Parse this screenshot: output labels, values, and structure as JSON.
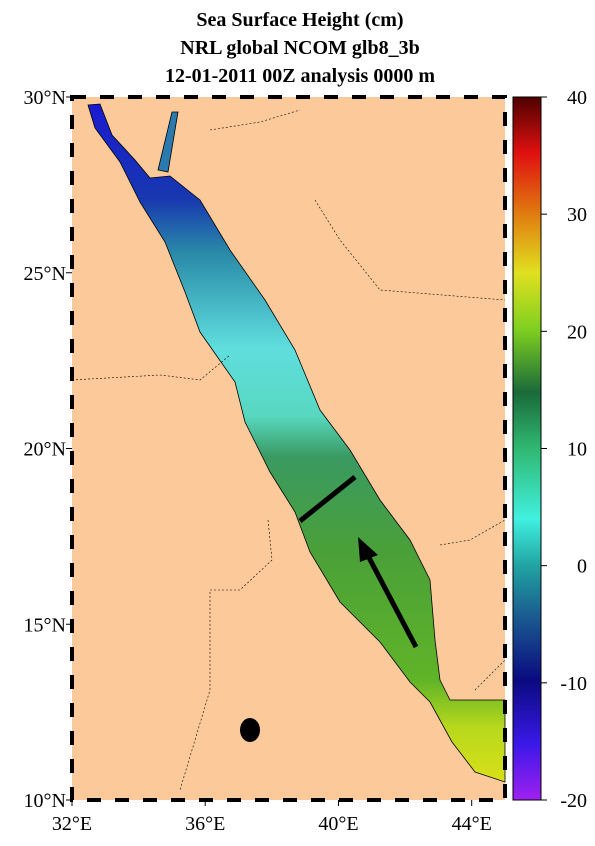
{
  "header": {
    "title_lines": [
      "Sea Surface Height (cm)",
      "NRL global NCOM glb8_3b",
      "12-01-2011 00Z analysis   0000 m"
    ]
  },
  "map": {
    "latlim": [
      10,
      30
    ],
    "lonlim": [
      32,
      45
    ],
    "lat_ticks": [
      {
        "value": 30,
        "label": "30°N"
      },
      {
        "value": 25,
        "label": "25°N"
      },
      {
        "value": 20,
        "label": "20°N"
      },
      {
        "value": 15,
        "label": "15°N"
      },
      {
        "value": 10,
        "label": "10°N"
      }
    ],
    "lon_ticks": [
      {
        "value": 32,
        "label": "32°E"
      },
      {
        "value": 36,
        "label": "36°E"
      },
      {
        "value": 40,
        "label": "40°E"
      },
      {
        "value": 44,
        "label": "44°E"
      }
    ]
  },
  "colorbar": {
    "lim": [
      -20,
      40
    ],
    "ticks": [
      -20,
      -10,
      0,
      10,
      20,
      30,
      40
    ]
  }
}
